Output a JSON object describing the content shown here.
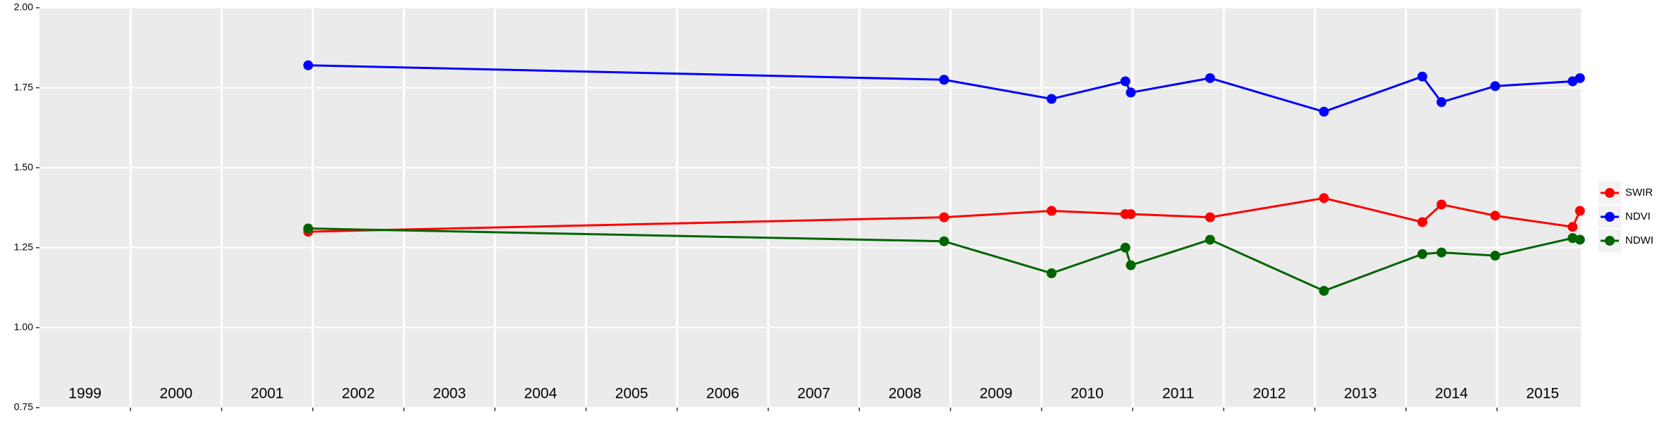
{
  "chart_data": {
    "type": "line",
    "x": [
      2001.95,
      2008.93,
      2010.11,
      2010.92,
      2010.98,
      2011.85,
      2013.1,
      2014.18,
      2014.39,
      2014.98,
      2015.83,
      2015.91
    ],
    "series": [
      {
        "name": "SWIR",
        "color": "#ff0000",
        "values": [
          1.3,
          1.345,
          1.365,
          1.355,
          1.355,
          1.345,
          1.405,
          1.33,
          1.385,
          1.35,
          1.315,
          1.365
        ]
      },
      {
        "name": "NDVI",
        "color": "#0000ff",
        "values": [
          1.82,
          1.775,
          1.715,
          1.77,
          1.735,
          1.78,
          1.675,
          1.785,
          1.705,
          1.755,
          1.77,
          1.78
        ]
      },
      {
        "name": "NDWI",
        "color": "#006400",
        "values": [
          1.31,
          1.27,
          1.17,
          1.25,
          1.195,
          1.275,
          1.115,
          1.23,
          1.235,
          1.225,
          1.28,
          1.275
        ]
      }
    ],
    "year_labels": [
      "1999",
      "2000",
      "2001",
      "2002",
      "2003",
      "2004",
      "2005",
      "2006",
      "2007",
      "2008",
      "2009",
      "2010",
      "2011",
      "2012",
      "2013",
      "2014",
      "2015"
    ],
    "xlim": [
      1999,
      2015.92
    ],
    "xticks": [
      2000,
      2001,
      2002,
      2003,
      2004,
      2005,
      2006,
      2007,
      2008,
      2009,
      2010,
      2011,
      2012,
      2013,
      2014,
      2015
    ],
    "ylim": [
      0.75,
      2.0
    ],
    "yticks": [
      {
        "value": 0.75,
        "label": "0.75"
      },
      {
        "value": 1.0,
        "label": "1.00"
      },
      {
        "value": 1.25,
        "label": "1.25"
      },
      {
        "value": 1.5,
        "label": "1.50"
      },
      {
        "value": 1.75,
        "label": "1.75"
      },
      {
        "value": 2.0,
        "label": "2.00"
      }
    ],
    "grid": true,
    "legend": "right"
  }
}
